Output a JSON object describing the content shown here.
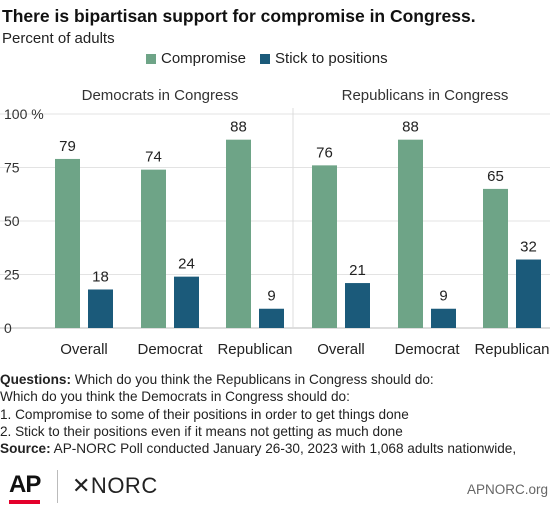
{
  "title": "There is bipartisan support for compromise in Congress.",
  "subtitle": "Percent of adults",
  "legend": {
    "compromise": "Compromise",
    "stick": "Stick to positions",
    "compromise_color": "#6ea487",
    "stick_color": "#1b5a7a"
  },
  "chart_data": {
    "type": "bar",
    "panels": [
      {
        "title": "Democrats in Congress",
        "categories": [
          "Overall",
          "Democrat",
          "Republican"
        ],
        "series": [
          {
            "name": "Compromise",
            "values": [
              79,
              74,
              88
            ]
          },
          {
            "name": "Stick to positions",
            "values": [
              18,
              24,
              9
            ]
          }
        ]
      },
      {
        "title": "Republicans in Congress",
        "categories": [
          "Overall",
          "Democrat",
          "Republican"
        ],
        "series": [
          {
            "name": "Compromise",
            "values": [
              76,
              88,
              65
            ]
          },
          {
            "name": "Stick to positions",
            "values": [
              21,
              9,
              32
            ]
          }
        ]
      }
    ],
    "ylim": [
      0,
      100
    ],
    "yticks": [
      "0",
      "25",
      "50",
      "75",
      "100 %"
    ],
    "grid": true
  },
  "notes": {
    "questions_label": "Questions:",
    "line1": " Which do you think the Republicans in Congress should do:",
    "line2": "Which do you think the Democrats in Congress should do:",
    "line3": "1. Compromise to some of their positions in order to get things done",
    "line4": "2. Stick to their positions even if it means not getting as much done",
    "source_label": "Source:",
    "source": " AP-NORC Poll conducted January 26-30, 2023 with 1,068 adults nationwide,"
  },
  "footer": {
    "ap": "AP",
    "norc": "✕NORC",
    "site": "APNORC.org"
  }
}
